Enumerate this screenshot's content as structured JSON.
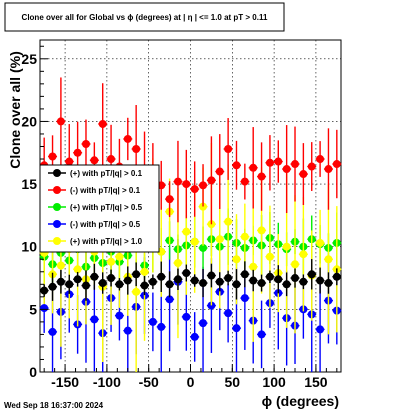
{
  "title": "Clone  over all for Global vs ϕ (degrees) at |  η | <= 1.0 at pT > 0.11",
  "footer": "Wed Sep 18 16:37:00 2024",
  "chart_data": {
    "type": "scatter",
    "xlabel": "ϕ (degrees)",
    "ylabel": "Clone  over all (%)",
    "xlim": [
      -180,
      180
    ],
    "ylim": [
      0,
      26.5
    ],
    "xticks": [
      "-150",
      "-100",
      "-50",
      "0",
      "50",
      "100",
      "150"
    ],
    "yticks": [
      "0",
      "5",
      "10",
      "15",
      "20",
      "25"
    ],
    "grid": true,
    "legend_position": "left-middle",
    "series": [
      {
        "name": "(+) with pT/|q| > 0.1",
        "color": "#000000",
        "x": [
          -175,
          -165,
          -155,
          -145,
          -135,
          -125,
          -115,
          -105,
          -95,
          -85,
          -75,
          -65,
          -55,
          -45,
          -35,
          -25,
          -15,
          -5,
          5,
          15,
          25,
          35,
          45,
          55,
          65,
          75,
          85,
          95,
          105,
          115,
          125,
          135,
          145,
          155,
          165,
          175
        ],
        "y": [
          6.5,
          6.8,
          7.2,
          7.0,
          7.4,
          6.9,
          7.6,
          7.1,
          7.5,
          7.0,
          7.3,
          7.8,
          6.9,
          7.2,
          7.6,
          7.0,
          7.4,
          7.9,
          7.3,
          7.1,
          7.7,
          7.2,
          7.5,
          7.0,
          7.8,
          7.3,
          7.1,
          7.6,
          7.4,
          7.0,
          7.5,
          7.2,
          7.8,
          7.3,
          7.1,
          7.6
        ]
      },
      {
        "name": "(-) with pT/|q| > 0.1",
        "color": "#ff0000",
        "x": [
          -175,
          -165,
          -155,
          -145,
          -135,
          -125,
          -115,
          -105,
          -95,
          -85,
          -75,
          -65,
          -55,
          -45,
          -35,
          -25,
          -15,
          -5,
          5,
          15,
          25,
          35,
          45,
          55,
          65,
          75,
          85,
          95,
          105,
          115,
          125,
          135,
          145,
          155,
          165,
          175
        ],
        "y": [
          16.5,
          17.2,
          20.0,
          16.8,
          17.5,
          18.2,
          16.9,
          19.8,
          17.0,
          16.4,
          18.6,
          17.8,
          16.2,
          15.8,
          14.9,
          13.8,
          15.2,
          15.0,
          14.6,
          14.9,
          15.3,
          16.0,
          17.8,
          16.5,
          15.2,
          16.3,
          15.6,
          16.7,
          16.8,
          16.2,
          16.6,
          15.8,
          16.4,
          17.0,
          16.2,
          16.6
        ]
      },
      {
        "name": "(+) with pT/|q| > 0.5",
        "color": "#00ee00",
        "x": [
          -175,
          -165,
          -155,
          -145,
          -135,
          -125,
          -115,
          -105,
          -95,
          -85,
          -75,
          -65,
          -55,
          -45,
          -35,
          -25,
          -15,
          -5,
          5,
          15,
          25,
          35,
          45,
          55,
          65,
          75,
          85,
          95,
          105,
          115,
          125,
          135,
          145,
          155,
          165,
          175
        ],
        "y": [
          9.2,
          8.6,
          9.5,
          8.9,
          9.8,
          8.4,
          9.1,
          8.7,
          9.6,
          8.8,
          9.3,
          9.9,
          8.5,
          10.2,
          9.6,
          10.5,
          9.8,
          10.1,
          10.4,
          9.9,
          10.6,
          10.0,
          10.8,
          10.3,
          9.9,
          10.5,
          10.1,
          10.7,
          10.2,
          9.8,
          10.4,
          10.0,
          10.6,
          10.2,
          9.9,
          10.3
        ]
      },
      {
        "name": "(-) with pT/|q| > 0.5",
        "color": "#0000ff",
        "x": [
          -175,
          -165,
          -155,
          -145,
          -135,
          -125,
          -115,
          -105,
          -95,
          -85,
          -75,
          -65,
          -55,
          -45,
          -35,
          -25,
          -15,
          -5,
          5,
          15,
          25,
          35,
          45,
          55,
          65,
          75,
          85,
          95,
          105,
          115,
          125,
          135,
          145,
          155,
          165,
          175
        ],
        "y": [
          5.1,
          3.2,
          4.8,
          6.2,
          3.8,
          5.6,
          4.2,
          3.1,
          5.9,
          4.5,
          3.3,
          5.2,
          6.1,
          4.0,
          3.6,
          5.8,
          7.2,
          4.4,
          2.8,
          3.9,
          5.3,
          6.4,
          4.7,
          3.5,
          5.9,
          4.1,
          3.0,
          5.5,
          6.3,
          4.3,
          3.7,
          5.0,
          4.6,
          3.4,
          5.7,
          4.9
        ]
      },
      {
        "name": "(+) with pT/|q| > 1.0",
        "color": "#ffff00",
        "x": [
          -175,
          -165,
          -155,
          -145,
          -135,
          -125,
          -115,
          -105,
          -95,
          -85,
          -75,
          -65,
          -55,
          -45,
          -35,
          -25,
          -15,
          -5,
          5,
          15,
          25,
          35,
          45,
          55,
          65,
          75,
          85,
          95,
          105,
          115,
          125,
          135,
          145,
          155,
          165,
          175
        ],
        "y": [
          9.5,
          7.8,
          8.5,
          9.8,
          8.2,
          7.4,
          9.6,
          6.8,
          8.8,
          9.2,
          7.6,
          6.4,
          8.0,
          12.5,
          9.6,
          12.8,
          8.7,
          11.2,
          10.4,
          13.2,
          11.8,
          10.6,
          12.0,
          9.0,
          10.8,
          8.4,
          11.3,
          9.2,
          7.9,
          10.0,
          8.6,
          9.4,
          7.7,
          10.3,
          9.0,
          8.2
        ]
      }
    ]
  }
}
